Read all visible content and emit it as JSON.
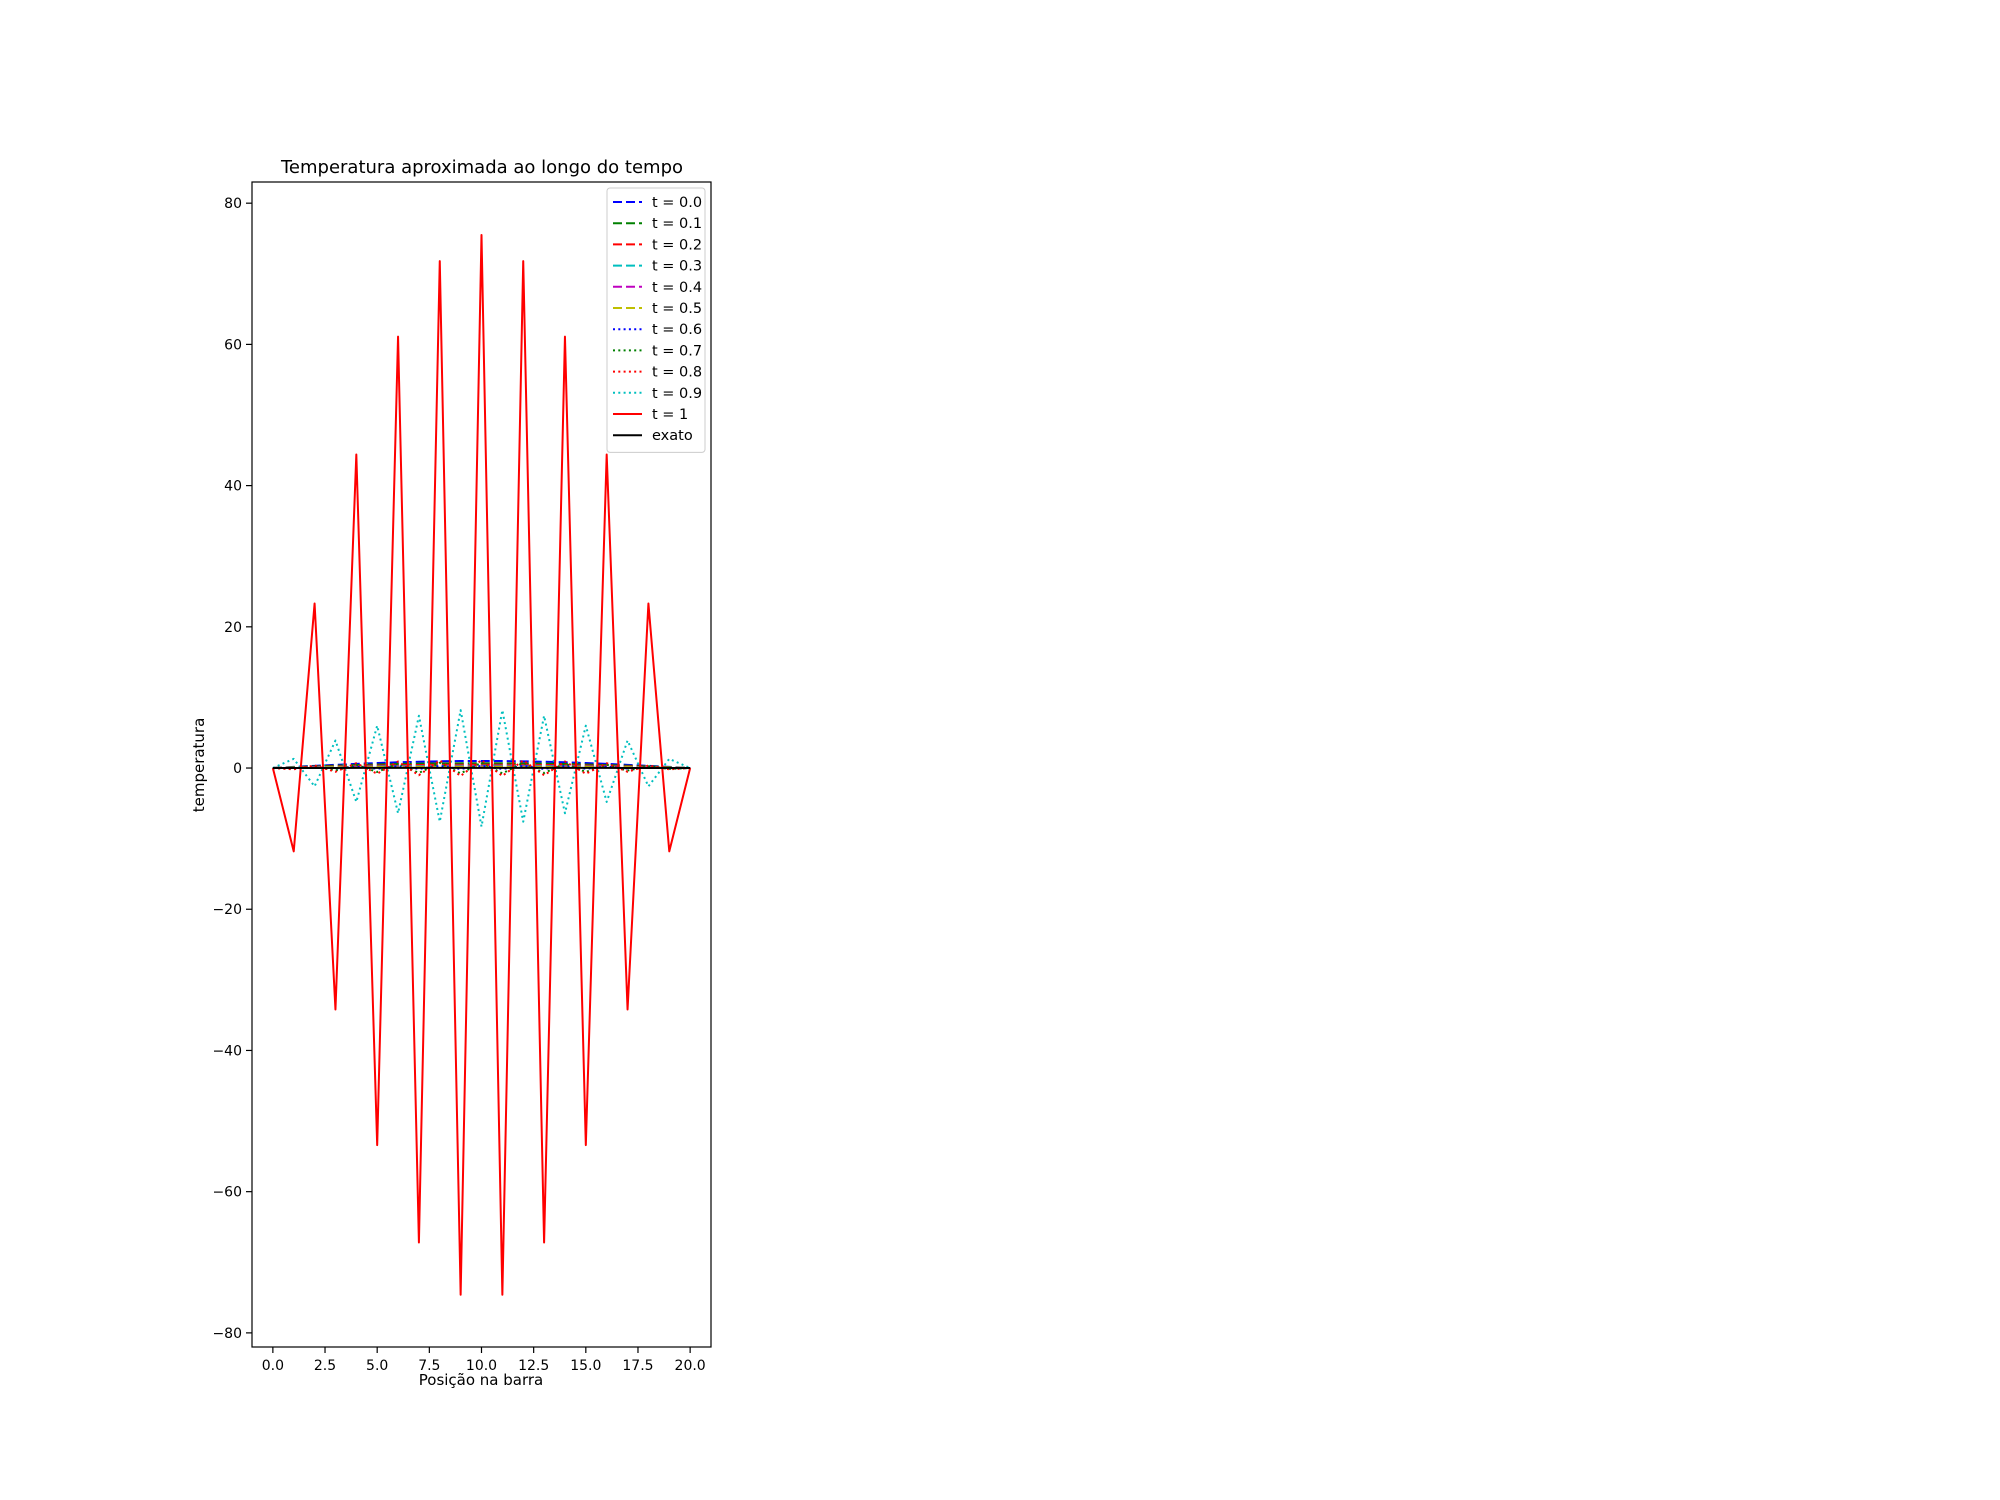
{
  "chart_data": {
    "type": "line",
    "title": "Temperatura aproximada ao longo do tempo",
    "xlabel": "Posição na barra",
    "ylabel": "temperatura",
    "xlim": [
      -1.0,
      21.0
    ],
    "ylim": [
      -82.0,
      83.0
    ],
    "xticks": [
      0.0,
      2.5,
      5.0,
      7.5,
      10.0,
      12.5,
      15.0,
      17.5,
      20.0
    ],
    "xtick_labels": [
      "0.0",
      "2.5",
      "5.0",
      "7.5",
      "10.0",
      "12.5",
      "15.0",
      "17.5",
      "20.0"
    ],
    "yticks": [
      80,
      60,
      40,
      20,
      0,
      -20,
      -40,
      -60,
      -80
    ],
    "ytick_labels": [
      "80",
      "60",
      "40",
      "20",
      "0",
      "−20",
      "−40",
      "−60",
      "−80"
    ],
    "grid": false,
    "legend_position": "top-right",
    "x": [
      0,
      1,
      2,
      3,
      4,
      5,
      6,
      7,
      8,
      9,
      10,
      11,
      12,
      13,
      14,
      15,
      16,
      17,
      18,
      19,
      20
    ],
    "series": [
      {
        "name": "t = 0.0",
        "color": "#0000ff",
        "style": "dashed",
        "values": [
          0,
          0.16,
          0.31,
          0.45,
          0.59,
          0.71,
          0.81,
          0.89,
          0.95,
          0.99,
          1,
          0.99,
          0.95,
          0.89,
          0.81,
          0.71,
          0.59,
          0.45,
          0.31,
          0.16,
          0
        ]
      },
      {
        "name": "t = 0.1",
        "color": "#008000",
        "style": "dashed",
        "values": [
          0,
          0.12,
          0.23,
          0.33,
          0.42,
          0.5,
          0.57,
          0.62,
          0.65,
          0.67,
          0.68,
          0.67,
          0.65,
          0.62,
          0.57,
          0.5,
          0.42,
          0.33,
          0.23,
          0.12,
          0
        ]
      },
      {
        "name": "t = 0.2",
        "color": "#ff0000",
        "style": "dashed",
        "values": [
          0,
          0.08,
          0.16,
          0.23,
          0.3,
          0.35,
          0.4,
          0.43,
          0.45,
          0.46,
          0.47,
          0.46,
          0.45,
          0.43,
          0.4,
          0.35,
          0.3,
          0.23,
          0.16,
          0.08,
          0
        ]
      },
      {
        "name": "t = 0.3",
        "color": "#00bfbf",
        "style": "dashed",
        "values": [
          0,
          0.06,
          0.11,
          0.16,
          0.2,
          0.24,
          0.27,
          0.29,
          0.31,
          0.32,
          0.32,
          0.32,
          0.31,
          0.29,
          0.27,
          0.24,
          0.2,
          0.16,
          0.11,
          0.06,
          0
        ]
      },
      {
        "name": "t = 0.4",
        "color": "#bf00bf",
        "style": "dashed",
        "values": [
          0,
          0.04,
          0.08,
          0.12,
          0.15,
          0.18,
          0.2,
          0.22,
          0.23,
          0.24,
          0.24,
          0.24,
          0.23,
          0.22,
          0.2,
          0.18,
          0.15,
          0.12,
          0.08,
          0.04,
          0
        ]
      },
      {
        "name": "t = 0.5",
        "color": "#bfbf00",
        "style": "dashed",
        "values": [
          0,
          0.05,
          0.02,
          0.12,
          0.06,
          0.16,
          0.09,
          0.18,
          0.12,
          0.19,
          0.13,
          0.19,
          0.12,
          0.18,
          0.09,
          0.16,
          0.06,
          0.12,
          0.02,
          0.05,
          0
        ]
      },
      {
        "name": "t = 0.6",
        "color": "#0000ff",
        "style": "dotted",
        "values": [
          0,
          -0.05,
          0.12,
          -0.08,
          0.2,
          -0.1,
          0.26,
          -0.12,
          0.3,
          -0.13,
          0.31,
          -0.13,
          0.3,
          -0.12,
          0.26,
          -0.1,
          0.2,
          -0.08,
          0.12,
          -0.05,
          0
        ]
      },
      {
        "name": "t = 0.7",
        "color": "#008000",
        "style": "dotted",
        "values": [
          0,
          -0.12,
          0.25,
          -0.36,
          0.47,
          -0.56,
          0.64,
          -0.7,
          0.74,
          -0.76,
          0.77,
          -0.76,
          0.74,
          -0.7,
          0.64,
          -0.56,
          0.47,
          -0.36,
          0.25,
          -0.12,
          0
        ]
      },
      {
        "name": "t = 0.8",
        "color": "#ff0000",
        "style": "dotted",
        "values": [
          0,
          -0.19,
          0.36,
          -0.53,
          0.68,
          -0.81,
          0.93,
          -1.02,
          1.08,
          -1.12,
          1.13,
          -1.12,
          1.08,
          -1.02,
          0.93,
          -0.81,
          0.68,
          -0.53,
          0.36,
          -0.19,
          0
        ]
      },
      {
        "name": "t = 0.9",
        "color": "#00bfbf",
        "style": "dotted",
        "values": [
          0,
          1.3,
          -2.6,
          3.9,
          -4.8,
          6.0,
          -6.4,
          7.4,
          -7.6,
          8.2,
          -8.3,
          8.2,
          -7.6,
          7.4,
          -6.4,
          6.0,
          -4.8,
          3.9,
          -2.6,
          1.3,
          0
        ]
      },
      {
        "name": "t = 1",
        "color": "#ff0000",
        "style": "solid",
        "values": [
          0,
          -11.8,
          23.3,
          -34.2,
          44.4,
          -53.4,
          61.1,
          -67.2,
          71.8,
          -74.6,
          75.5,
          -74.6,
          71.8,
          -67.2,
          61.1,
          -53.4,
          44.4,
          -34.2,
          23.3,
          -11.8,
          0
        ]
      },
      {
        "name": "exato",
        "color": "#000000",
        "style": "solid",
        "values": [
          0,
          0.01,
          0.01,
          0.01,
          0.02,
          0.02,
          0.02,
          0.02,
          0.02,
          0.02,
          0.02,
          0.02,
          0.02,
          0.02,
          0.02,
          0.02,
          0.02,
          0.01,
          0.01,
          0.01,
          0
        ]
      }
    ]
  }
}
